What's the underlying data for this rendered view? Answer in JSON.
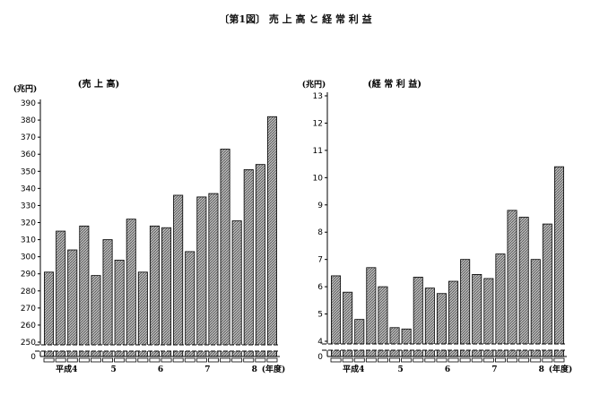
{
  "figure": {
    "title": "〔第1図〕 売 上 高 と 経 常 利 益"
  },
  "style": {
    "bar_fill": "#b8b8b8",
    "bar_stroke": "#000000",
    "axis": "#000000"
  },
  "chart_data": [
    {
      "id": "sales",
      "type": "bar",
      "title": "(売 上 高)",
      "unit_label": "(兆円)",
      "ylim": [
        250,
        390
      ],
      "yticks": [
        250,
        260,
        270,
        280,
        290,
        300,
        310,
        320,
        330,
        340,
        350,
        360,
        370,
        380,
        390
      ],
      "axis_break": true,
      "baseline_label": "0",
      "x_group_labels": [
        "平成4",
        "5",
        "6",
        "7",
        "8"
      ],
      "x_suffix_label": "(年度)",
      "values": [
        291,
        315,
        304,
        318,
        289,
        310,
        298,
        322,
        291,
        318,
        317,
        336,
        303,
        335,
        337,
        363,
        321,
        351,
        354,
        382
      ]
    },
    {
      "id": "ordinary-profit",
      "type": "bar",
      "title": "(経 常 利 益)",
      "unit_label": "(兆円)",
      "ylim": [
        4,
        13
      ],
      "yticks": [
        4,
        5,
        6,
        7,
        8,
        9,
        10,
        11,
        12,
        13
      ],
      "axis_break": true,
      "baseline_label": "0",
      "x_group_labels": [
        "平成4",
        "5",
        "6",
        "7",
        "8"
      ],
      "x_suffix_label": "(年度)",
      "values": [
        6.4,
        5.8,
        4.8,
        6.7,
        6.0,
        4.5,
        4.45,
        6.35,
        5.95,
        5.75,
        6.2,
        7.0,
        6.45,
        6.3,
        7.2,
        8.8,
        8.55,
        7.0,
        8.3,
        10.4
      ]
    }
  ]
}
